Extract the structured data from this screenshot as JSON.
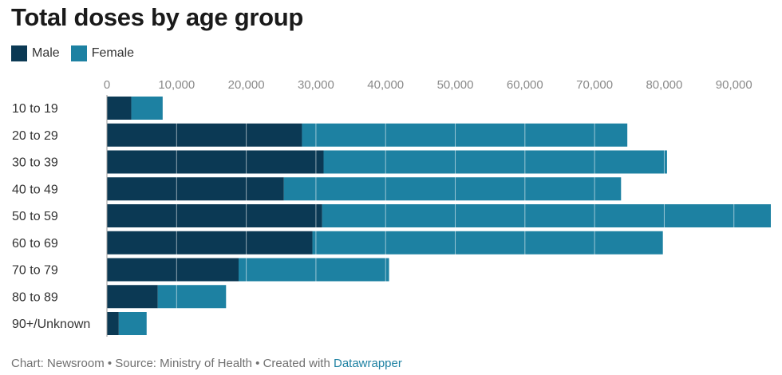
{
  "title": "Total doses by age group",
  "legend": [
    {
      "label": "Male",
      "color": "#0b3954"
    },
    {
      "label": "Female",
      "color": "#1d81a2"
    }
  ],
  "footer": {
    "text": "Chart: Newsroom • Source: Ministry of Health • Created with ",
    "link": "Datawrapper"
  },
  "chart_data": {
    "type": "bar",
    "orientation": "horizontal",
    "stacked": true,
    "title": "Total doses by age group",
    "categories": [
      "10 to 19",
      "20 to 29",
      "30 to 39",
      "40 to 49",
      "50 to 59",
      "60 to 69",
      "70 to 79",
      "80 to 89",
      "90+/Unknown"
    ],
    "series": [
      {
        "name": "Male",
        "color": "#0b3954",
        "values": [
          3500,
          28000,
          31100,
          25400,
          30900,
          29500,
          18900,
          7300,
          1700
        ]
      },
      {
        "name": "Female",
        "color": "#1d81a2",
        "values": [
          4500,
          46700,
          49300,
          48400,
          64400,
          50300,
          21600,
          9800,
          4000
        ]
      }
    ],
    "xticks": [
      0,
      10000,
      20000,
      30000,
      40000,
      50000,
      60000,
      70000,
      80000,
      90000
    ],
    "xtick_labels": [
      "0",
      "10,000",
      "20,000",
      "30,000",
      "40,000",
      "50,000",
      "60,000",
      "70,000",
      "80,000",
      "90,000"
    ],
    "xlim": [
      0,
      95300
    ],
    "grid": true,
    "legend_position": "top-left"
  }
}
